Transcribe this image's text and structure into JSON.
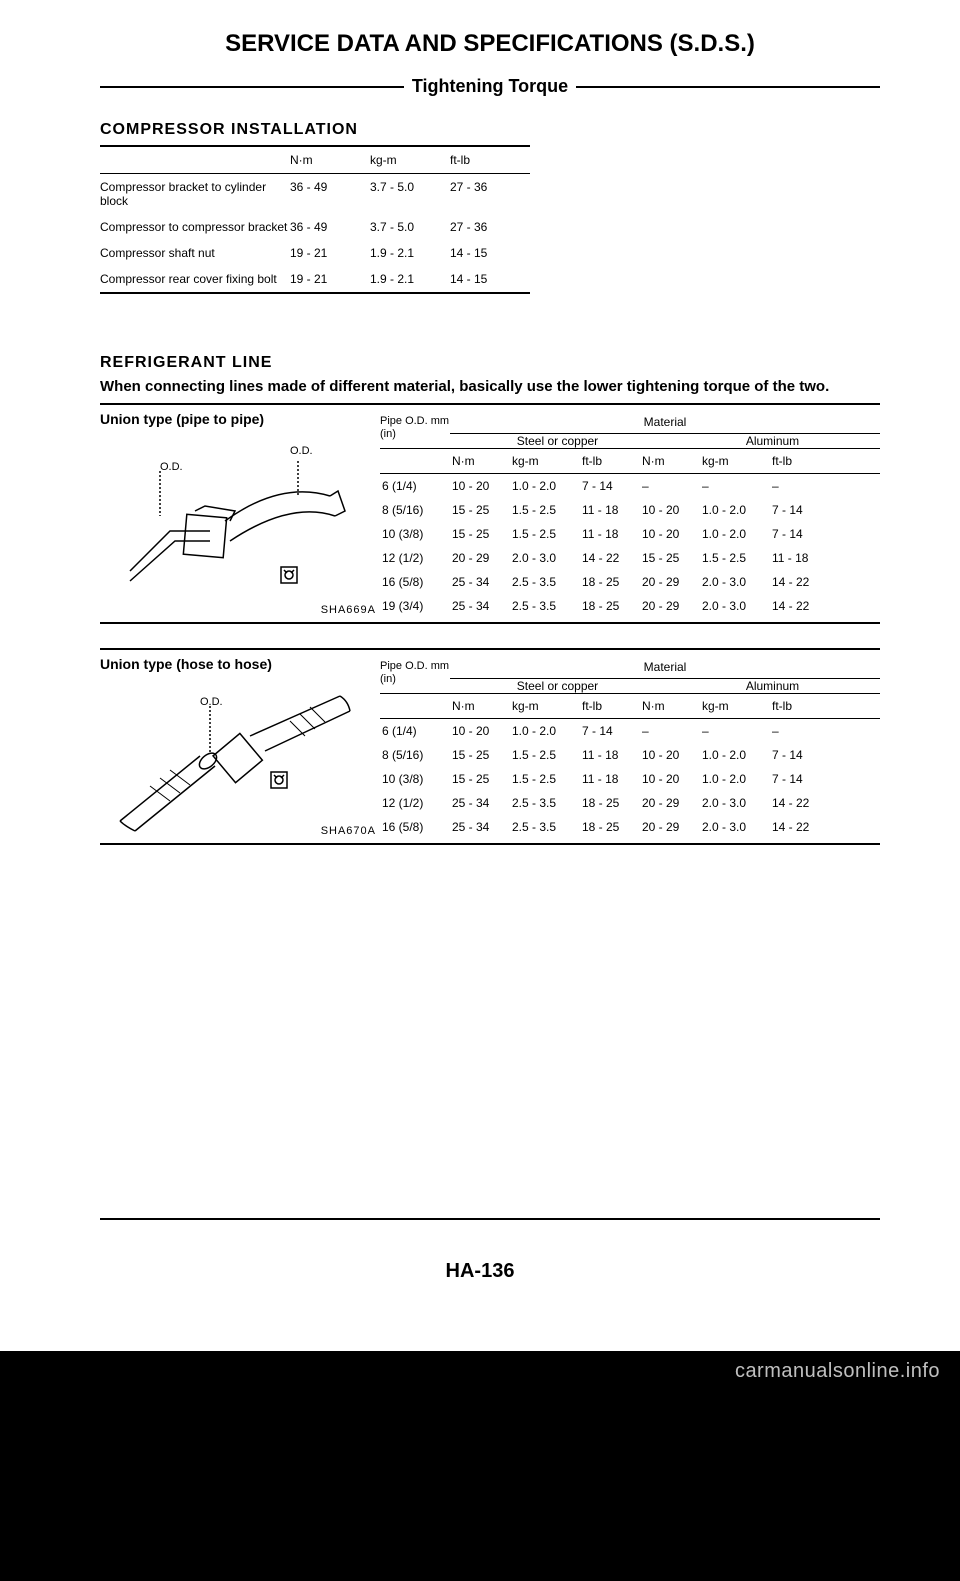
{
  "page": {
    "title": "SERVICE DATA AND SPECIFICATIONS (S.D.S.)",
    "subtitle": "Tightening Torque",
    "page_number": "HA-136",
    "watermark": "carmanualsonline.info"
  },
  "compressor": {
    "heading": "COMPRESSOR INSTALLATION",
    "columns": [
      "",
      "N·m",
      "kg-m",
      "ft-lb"
    ],
    "rows": [
      {
        "label": "Compressor bracket to cylinder block",
        "nm": "36 - 49",
        "kgm": "3.7 - 5.0",
        "ftlb": "27 - 36"
      },
      {
        "label": "Compressor to compressor bracket",
        "nm": "36 - 49",
        "kgm": "3.7 - 5.0",
        "ftlb": "27 - 36"
      },
      {
        "label": "Compressor shaft nut",
        "nm": "19 - 21",
        "kgm": "1.9 - 2.1",
        "ftlb": "14 - 15"
      },
      {
        "label": "Compressor rear cover fixing bolt",
        "nm": "19 - 21",
        "kgm": "1.9 - 2.1",
        "ftlb": "14 - 15"
      }
    ]
  },
  "refrigerant": {
    "heading": "REFRIGERANT LINE",
    "note": "When connecting lines made of different material, basically use the lower tightening torque of the two.",
    "material_label": "Material",
    "steel_label": "Steel or copper",
    "aluminum_label": "Aluminum",
    "pipe_od_label": "Pipe O.D. mm (in)",
    "unit_nm": "N·m",
    "unit_kgm": "kg-m",
    "unit_ftlb": "ft-lb",
    "pipe": {
      "title": "Union type (pipe to pipe)",
      "od_label": "O.D.",
      "figure_ref": "SHA669A",
      "rows": [
        {
          "size": "6 (1/4)",
          "s_nm": "10 - 20",
          "s_kgm": "1.0 - 2.0",
          "s_ftlb": "7 - 14",
          "a_nm": "–",
          "a_kgm": "–",
          "a_ftlb": "–"
        },
        {
          "size": "8 (5/16)",
          "s_nm": "15 - 25",
          "s_kgm": "1.5 - 2.5",
          "s_ftlb": "11 - 18",
          "a_nm": "10 - 20",
          "a_kgm": "1.0 - 2.0",
          "a_ftlb": "7 - 14"
        },
        {
          "size": "10 (3/8)",
          "s_nm": "15 - 25",
          "s_kgm": "1.5 - 2.5",
          "s_ftlb": "11 - 18",
          "a_nm": "10 - 20",
          "a_kgm": "1.0 - 2.0",
          "a_ftlb": "7 - 14"
        },
        {
          "size": "12 (1/2)",
          "s_nm": "20 - 29",
          "s_kgm": "2.0 - 3.0",
          "s_ftlb": "14 - 22",
          "a_nm": "15 - 25",
          "a_kgm": "1.5 - 2.5",
          "a_ftlb": "11 - 18"
        },
        {
          "size": "16 (5/8)",
          "s_nm": "25 - 34",
          "s_kgm": "2.5 - 3.5",
          "s_ftlb": "18 - 25",
          "a_nm": "20 - 29",
          "a_kgm": "2.0 - 3.0",
          "a_ftlb": "14 - 22"
        },
        {
          "size": "19 (3/4)",
          "s_nm": "25 - 34",
          "s_kgm": "2.5 - 3.5",
          "s_ftlb": "18 - 25",
          "a_nm": "20 - 29",
          "a_kgm": "2.0 - 3.0",
          "a_ftlb": "14 - 22"
        }
      ]
    },
    "hose": {
      "title": "Union type (hose to hose)",
      "od_label": "O.D.",
      "figure_ref": "SHA670A",
      "rows": [
        {
          "size": "6 (1/4)",
          "s_nm": "10 - 20",
          "s_kgm": "1.0 - 2.0",
          "s_ftlb": "7 - 14",
          "a_nm": "–",
          "a_kgm": "–",
          "a_ftlb": "–"
        },
        {
          "size": "8 (5/16)",
          "s_nm": "15 - 25",
          "s_kgm": "1.5 - 2.5",
          "s_ftlb": "11 - 18",
          "a_nm": "10 - 20",
          "a_kgm": "1.0 - 2.0",
          "a_ftlb": "7 - 14"
        },
        {
          "size": "10 (3/8)",
          "s_nm": "15 - 25",
          "s_kgm": "1.5 - 2.5",
          "s_ftlb": "11 - 18",
          "a_nm": "10 - 20",
          "a_kgm": "1.0 - 2.0",
          "a_ftlb": "7 - 14"
        },
        {
          "size": "12 (1/2)",
          "s_nm": "25 - 34",
          "s_kgm": "2.5 - 3.5",
          "s_ftlb": "18 - 25",
          "a_nm": "20 - 29",
          "a_kgm": "2.0 - 3.0",
          "a_ftlb": "14 - 22"
        },
        {
          "size": "16 (5/8)",
          "s_nm": "25 - 34",
          "s_kgm": "2.5 - 3.5",
          "s_ftlb": "18 - 25",
          "a_nm": "20 - 29",
          "a_kgm": "2.0 - 3.0",
          "a_ftlb": "14 - 22"
        }
      ]
    }
  },
  "styling": {
    "page_bg": "#ffffff",
    "outer_bg": "#000000",
    "text_color": "#000000",
    "title_fontsize": 24,
    "body_fontsize": 12,
    "rule_thick": 2,
    "rule_thin": 1
  }
}
